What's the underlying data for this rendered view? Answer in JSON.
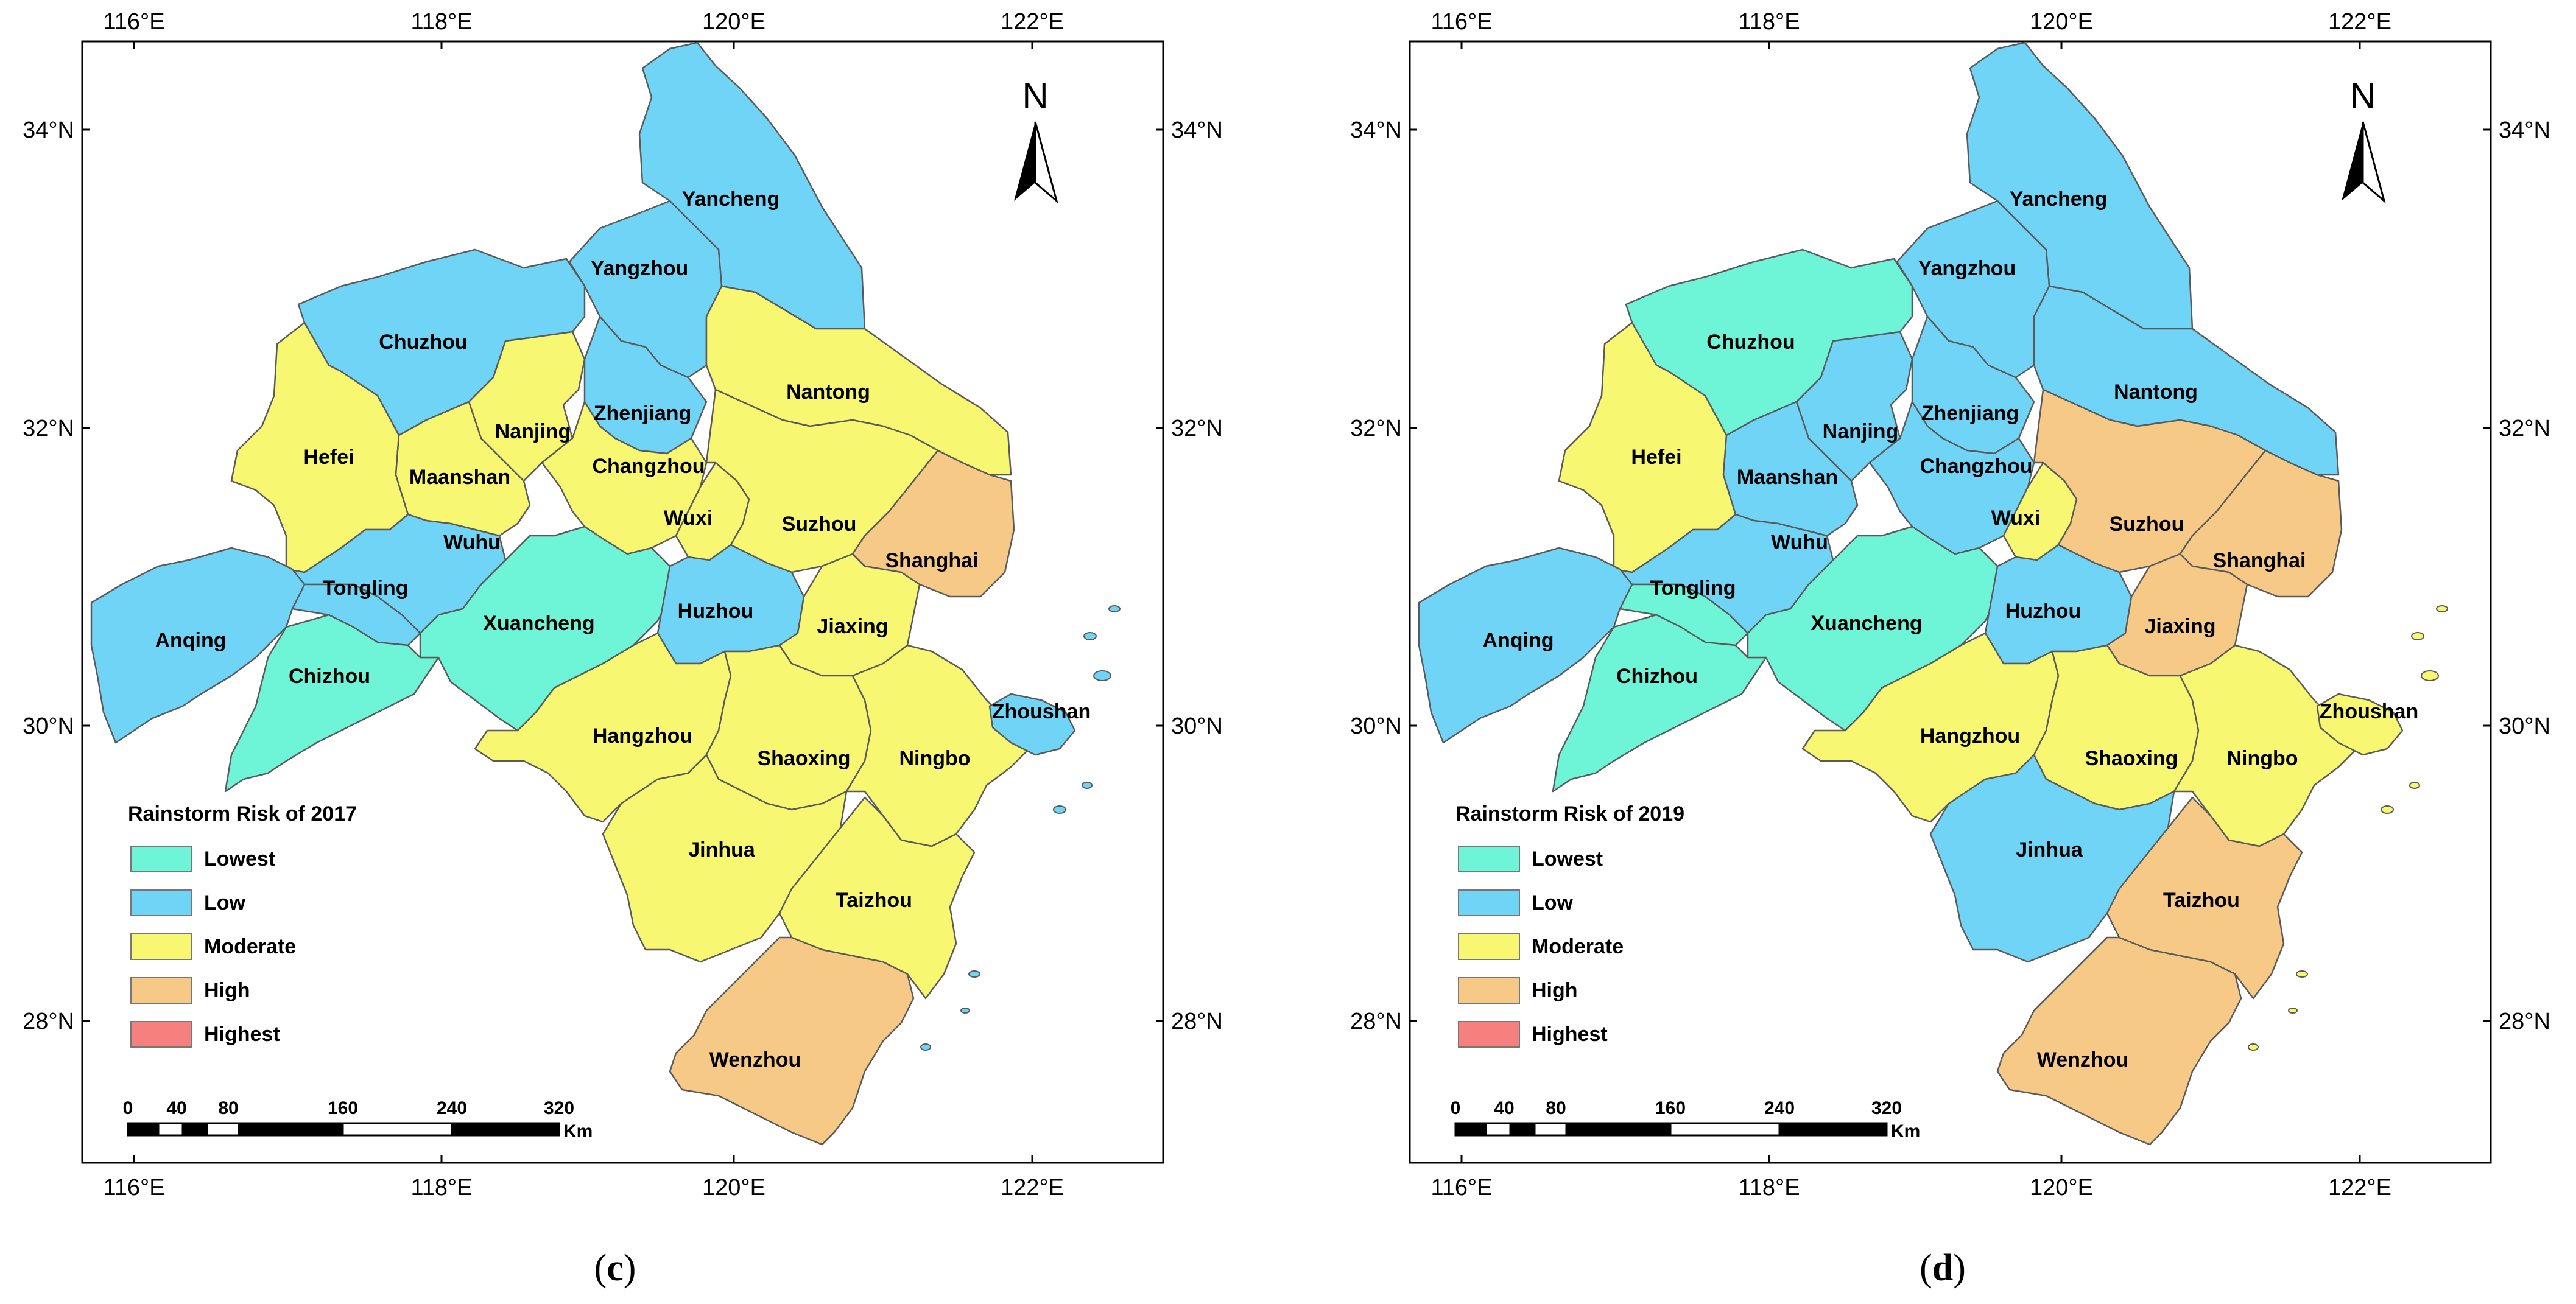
{
  "legend_classes": [
    {
      "label": "Lowest",
      "color": "#6ef5d8"
    },
    {
      "label": "Low",
      "color": "#70d4f7"
    },
    {
      "label": "Moderate",
      "color": "#f7f772"
    },
    {
      "label": "High",
      "color": "#f7c986"
    },
    {
      "label": "Highest",
      "color": "#f5807e"
    }
  ],
  "lon_ticks": [
    "116°E",
    "118°E",
    "120°E",
    "122°E"
  ],
  "lat_ticks": [
    "34°N",
    "32°N",
    "30°N",
    "28°N"
  ],
  "north_label": "N",
  "scalebar": {
    "ticks": [
      "0",
      "40",
      "80",
      "160",
      "240",
      "320"
    ],
    "unit": "Km"
  },
  "panels": [
    {
      "legend_title": "Rainstorm Risk of 2017",
      "caption_open": "(",
      "caption_letter": "c",
      "caption_close": ")",
      "cities": [
        {
          "name": "Yancheng",
          "risk": "Low"
        },
        {
          "name": "Yangzhou",
          "risk": "Low"
        },
        {
          "name": "Chuzhou",
          "risk": "Low"
        },
        {
          "name": "Nantong",
          "risk": "Moderate"
        },
        {
          "name": "Nanjing",
          "risk": "Moderate"
        },
        {
          "name": "Zhenjiang",
          "risk": "Low"
        },
        {
          "name": "Hefei",
          "risk": "Moderate"
        },
        {
          "name": "Maanshan",
          "risk": "Moderate"
        },
        {
          "name": "Changzhou",
          "risk": "Moderate"
        },
        {
          "name": "Wuxi",
          "risk": "Moderate"
        },
        {
          "name": "Suzhou",
          "risk": "Moderate"
        },
        {
          "name": "Shanghai",
          "risk": "High"
        },
        {
          "name": "Wuhu",
          "risk": "Low"
        },
        {
          "name": "Tongling",
          "risk": "Low"
        },
        {
          "name": "Anqing",
          "risk": "Low"
        },
        {
          "name": "Chizhou",
          "risk": "Lowest"
        },
        {
          "name": "Xuancheng",
          "risk": "Lowest"
        },
        {
          "name": "Huzhou",
          "risk": "Low"
        },
        {
          "name": "Jiaxing",
          "risk": "Moderate"
        },
        {
          "name": "Hangzhou",
          "risk": "Moderate"
        },
        {
          "name": "Shaoxing",
          "risk": "Moderate"
        },
        {
          "name": "Ningbo",
          "risk": "Moderate"
        },
        {
          "name": "Zhoushan",
          "risk": "Low"
        },
        {
          "name": "Jinhua",
          "risk": "Moderate"
        },
        {
          "name": "Taizhou",
          "risk": "Moderate"
        },
        {
          "name": "Wenzhou",
          "risk": "High"
        }
      ]
    },
    {
      "legend_title": "Rainstorm Risk of 2019",
      "caption_open": "(",
      "caption_letter": "d",
      "caption_close": ")",
      "cities": [
        {
          "name": "Yancheng",
          "risk": "Low"
        },
        {
          "name": "Yangzhou",
          "risk": "Low"
        },
        {
          "name": "Chuzhou",
          "risk": "Lowest"
        },
        {
          "name": "Nantong",
          "risk": "Low"
        },
        {
          "name": "Nanjing",
          "risk": "Low"
        },
        {
          "name": "Zhenjiang",
          "risk": "Low"
        },
        {
          "name": "Hefei",
          "risk": "Moderate"
        },
        {
          "name": "Maanshan",
          "risk": "Low"
        },
        {
          "name": "Changzhou",
          "risk": "Low"
        },
        {
          "name": "Wuxi",
          "risk": "Moderate"
        },
        {
          "name": "Suzhou",
          "risk": "High"
        },
        {
          "name": "Shanghai",
          "risk": "High"
        },
        {
          "name": "Wuhu",
          "risk": "Low"
        },
        {
          "name": "Tongling",
          "risk": "Lowest"
        },
        {
          "name": "Anqing",
          "risk": "Low"
        },
        {
          "name": "Chizhou",
          "risk": "Lowest"
        },
        {
          "name": "Xuancheng",
          "risk": "Lowest"
        },
        {
          "name": "Huzhou",
          "risk": "Low"
        },
        {
          "name": "Jiaxing",
          "risk": "High"
        },
        {
          "name": "Hangzhou",
          "risk": "Moderate"
        },
        {
          "name": "Shaoxing",
          "risk": "Moderate"
        },
        {
          "name": "Ningbo",
          "risk": "Moderate"
        },
        {
          "name": "Zhoushan",
          "risk": "Moderate"
        },
        {
          "name": "Jinhua",
          "risk": "Low"
        },
        {
          "name": "Taizhou",
          "risk": "High"
        },
        {
          "name": "Wenzhou",
          "risk": "High"
        }
      ]
    }
  ]
}
